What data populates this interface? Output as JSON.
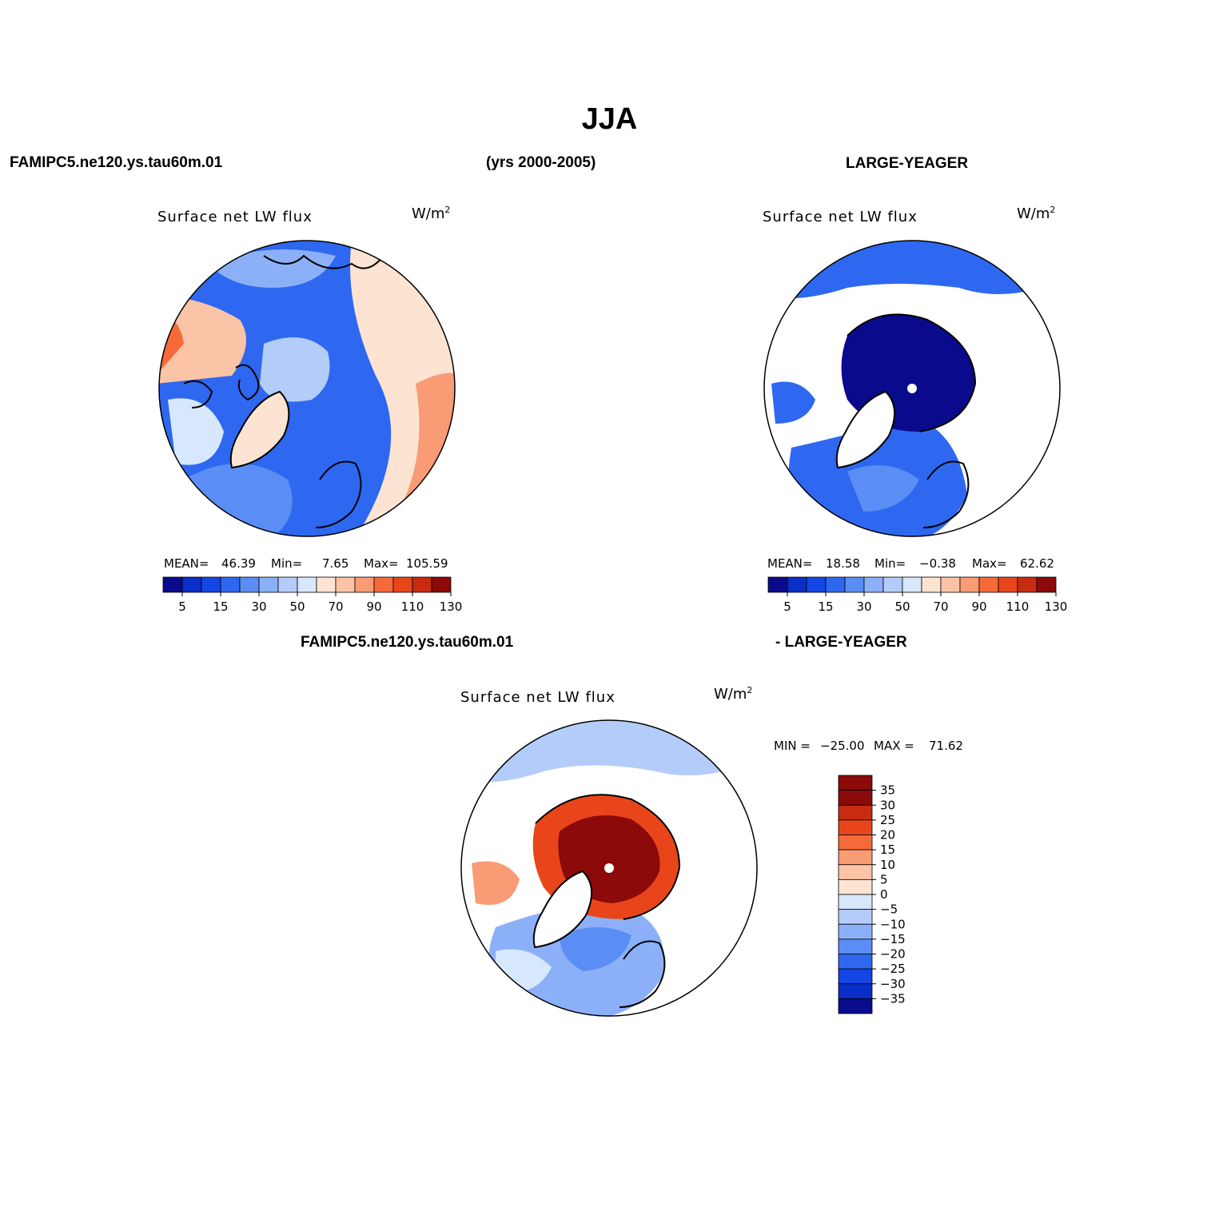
{
  "figure": {
    "season": "JJA",
    "left_header": "FAMIPC5.ne120.ys.tau60m.01",
    "center_header": "(yrs 2000-2005)",
    "right_header": "LARGE-YEAGER",
    "diff_left_header": "FAMIPC5.ne120.ys.tau60m.01",
    "diff_right_header": "- LARGE-YEAGER"
  },
  "palette": {
    "abs_colors": [
      "#0a0a8c",
      "#0a2ec8",
      "#1446e6",
      "#2e68f0",
      "#5a8ef4",
      "#8cb0f8",
      "#b4ccfa",
      "#d8e8fc",
      "#fde4d2",
      "#fcc4a6",
      "#f99c76",
      "#f66a3a",
      "#e8461a",
      "#c82c10",
      "#8c0a0a"
    ],
    "diff_colors": [
      "#0a0a8c",
      "#0a2ec8",
      "#1446e6",
      "#2e68f0",
      "#5a8ef4",
      "#8cb0f8",
      "#b4ccfa",
      "#d8e8fc",
      "#fde4d2",
      "#fcc4a6",
      "#f99c76",
      "#f66a3a",
      "#e8461a",
      "#c82c10",
      "#8c0a0a"
    ]
  },
  "chart_data": [
    {
      "type": "heatmap",
      "projection": "north-polar-stereographic",
      "title": "Surface net LW flux",
      "units": "W/m",
      "units_sup": "2",
      "stats": {
        "mean_label": "MEAN=",
        "mean": "46.39",
        "min_label": "Min=",
        "min": "7.65",
        "max_label": "Max=",
        "max": "105.59"
      },
      "colorbar": {
        "orientation": "horizontal",
        "levels": [
          "5",
          "15",
          "30",
          "50",
          "70",
          "90",
          "110",
          "130"
        ]
      }
    },
    {
      "type": "heatmap",
      "projection": "north-polar-stereographic",
      "title": "Surface net LW flux",
      "units": "W/m",
      "units_sup": "2",
      "stats": {
        "mean_label": "MEAN=",
        "mean": "18.58",
        "min_label": "Min=",
        "min": "−0.38",
        "max_label": "Max=",
        "max": "62.62"
      },
      "colorbar": {
        "orientation": "horizontal",
        "levels": [
          "5",
          "15",
          "30",
          "50",
          "70",
          "90",
          "110",
          "130"
        ]
      }
    },
    {
      "type": "heatmap",
      "projection": "north-polar-stereographic",
      "title": "Surface net LW flux",
      "units": "W/m",
      "units_sup": "2",
      "minmax": {
        "min_label": "MIN =",
        "min": "−25.00",
        "max_label": "MAX =",
        "max": "71.62"
      },
      "colorbar": {
        "orientation": "vertical",
        "levels": [
          "35",
          "30",
          "25",
          "20",
          "15",
          "10",
          "5",
          "0",
          "−5",
          "−10",
          "−15",
          "−20",
          "−25",
          "−30",
          "−35"
        ]
      }
    }
  ]
}
